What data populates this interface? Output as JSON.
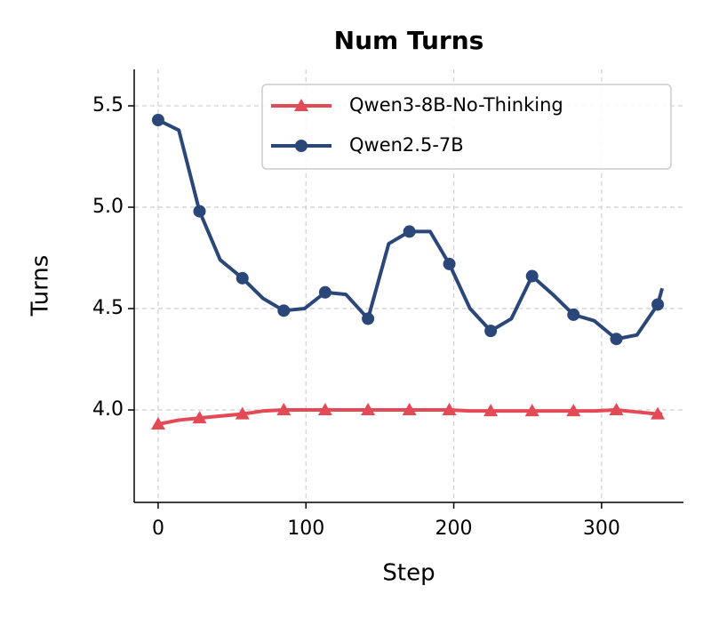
{
  "chart_data": {
    "type": "line",
    "title": "Num Turns",
    "x_label": "Step",
    "y_label": "Turns",
    "x": [
      0,
      14,
      28,
      42,
      57,
      71,
      85,
      99,
      113,
      127,
      142,
      156,
      170,
      184,
      197,
      211,
      225,
      239,
      253,
      267,
      281,
      295,
      310,
      324,
      338,
      341
    ],
    "series": [
      {
        "name": "Qwen3-8B-No-Thinking",
        "color": "#e34a55",
        "marker": "triangle",
        "values": [
          3.93,
          3.95,
          3.96,
          3.97,
          3.98,
          3.995,
          4.0,
          4.0,
          4.0,
          4.0,
          4.0,
          4.0,
          4.0,
          4.0,
          4.0,
          3.995,
          3.995,
          3.995,
          3.995,
          3.995,
          3.995,
          3.995,
          4.0,
          3.99,
          3.98,
          3.98
        ]
      },
      {
        "name": "Qwen2.5-7B",
        "color": "#2b4678",
        "marker": "circle",
        "values": [
          5.43,
          5.38,
          4.98,
          4.74,
          4.65,
          4.55,
          4.49,
          4.5,
          4.58,
          4.57,
          4.45,
          4.82,
          4.88,
          4.88,
          4.72,
          4.5,
          4.39,
          4.45,
          4.66,
          4.57,
          4.47,
          4.44,
          4.35,
          4.37,
          4.52,
          4.6
        ]
      }
    ],
    "markevery": 2,
    "xlim": [
      -16.2,
      355.4
    ],
    "xticks": [
      0,
      100,
      200,
      300
    ],
    "ylim": [
      3.544,
      5.68
    ],
    "yticks": [
      {
        "value": 4,
        "label": "4.0"
      },
      4.5,
      {
        "value": 5,
        "label": "5.0"
      },
      5.5
    ],
    "grid": true,
    "legend": "upper right"
  }
}
